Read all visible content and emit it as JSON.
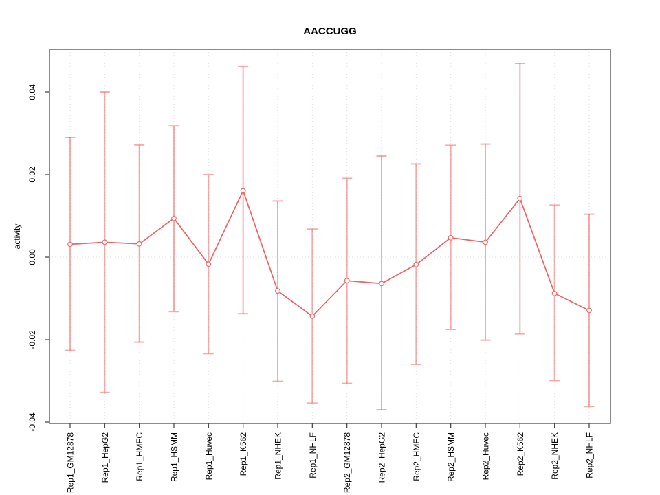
{
  "chart_data": {
    "type": "line",
    "title": "AACCUGG",
    "xlabel": "",
    "ylabel": "activity",
    "categories": [
      "Rep1_GM12878",
      "Rep1_HepG2",
      "Rep1_HMEC",
      "Rep1_HSMM",
      "Rep1_Huvec",
      "Rep1_K562",
      "Rep1_NHEK",
      "Rep1_NHLF",
      "Rep2_GM12878",
      "Rep2_HepG2",
      "Rep2_HMEC",
      "Rep2_HSMM",
      "Rep2_Huvec",
      "Rep2_K562",
      "Rep2_NHEK",
      "Rep2_NHLF"
    ],
    "series": [
      {
        "name": "activity",
        "values": [
          0.0031,
          0.0036,
          0.0032,
          0.0094,
          -0.0017,
          0.0161,
          -0.0082,
          -0.0143,
          -0.0057,
          -0.0064,
          -0.0018,
          0.0047,
          0.0036,
          0.0142,
          -0.0088,
          -0.0129
        ],
        "upper": [
          0.029,
          0.04,
          0.0272,
          0.0318,
          0.02,
          0.0462,
          0.0136,
          0.0068,
          0.0191,
          0.0245,
          0.0226,
          0.0271,
          0.0274,
          0.047,
          0.0126,
          0.0104
        ],
        "lower": [
          -0.0226,
          -0.0328,
          -0.0206,
          -0.0132,
          -0.0234,
          -0.0137,
          -0.0301,
          -0.0354,
          -0.0306,
          -0.037,
          -0.026,
          -0.0175,
          -0.0201,
          -0.0186,
          -0.0299,
          -0.0362
        ]
      }
    ],
    "yticks": [
      {
        "value": -0.04,
        "label": "-0.04"
      },
      {
        "value": -0.02,
        "label": "-0.02"
      },
      {
        "value": 0,
        "label": "0.00"
      },
      {
        "value": 0.02,
        "label": "0.02"
      },
      {
        "value": 0.04,
        "label": "0.04"
      }
    ],
    "ylim": [
      -0.0403,
      0.0504
    ],
    "grid": {
      "vertical": "dotted at each category",
      "zero_line": "dotted horizontal at 0"
    },
    "legend": "none",
    "marker": "open-circle",
    "error_bars": true,
    "colors": {
      "line": "#f0504b",
      "error_bar": "#f04641",
      "error_bar_opacity": "0.45",
      "marker_stroke": "#ee6a6a",
      "marker_fill": "#ffffff",
      "grid": "#dedede",
      "box": "#6e6e6e",
      "tick": "#4a4a4a",
      "text": "#000000"
    }
  }
}
